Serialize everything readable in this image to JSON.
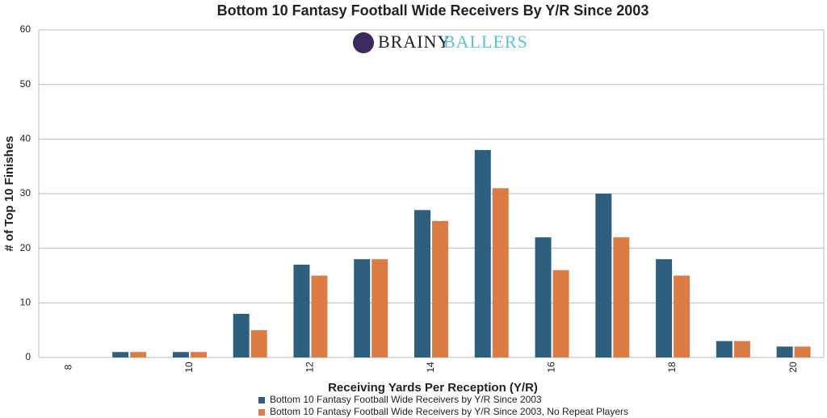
{
  "chart_data": {
    "type": "bar",
    "title": "Bottom 10 Fantasy Football Wide Receivers By Y/R Since 2003",
    "logo": [
      "BRAINY",
      "BALLERS"
    ],
    "x_label": "Receiving Yards Per Reception (Y/R)",
    "y_label": "# of Top 10 Finishes",
    "categories": [
      "8",
      null,
      "10",
      null,
      "12",
      null,
      "14",
      null,
      "16",
      null,
      "18",
      null,
      "20"
    ],
    "series": [
      {
        "name": "Bottom 10 Fantasy Football Wide Receivers by Y/R Since 2003",
        "color": "#2f5f7e",
        "values": [
          0,
          1,
          1,
          8,
          17,
          18,
          27,
          38,
          22,
          30,
          18,
          3,
          2
        ]
      },
      {
        "name": "Bottom 10 Fantasy Football Wide Receivers by Y/R Since 2003, No Repeat Players",
        "color": "#db7c44",
        "values": [
          0,
          1,
          1,
          5,
          15,
          18,
          25,
          31,
          16,
          22,
          15,
          3,
          2
        ]
      }
    ],
    "ylim": [
      0,
      60
    ],
    "yticks": [
      0,
      10,
      20,
      30,
      40,
      50,
      60
    ],
    "grid": true,
    "legend": "bottom"
  }
}
